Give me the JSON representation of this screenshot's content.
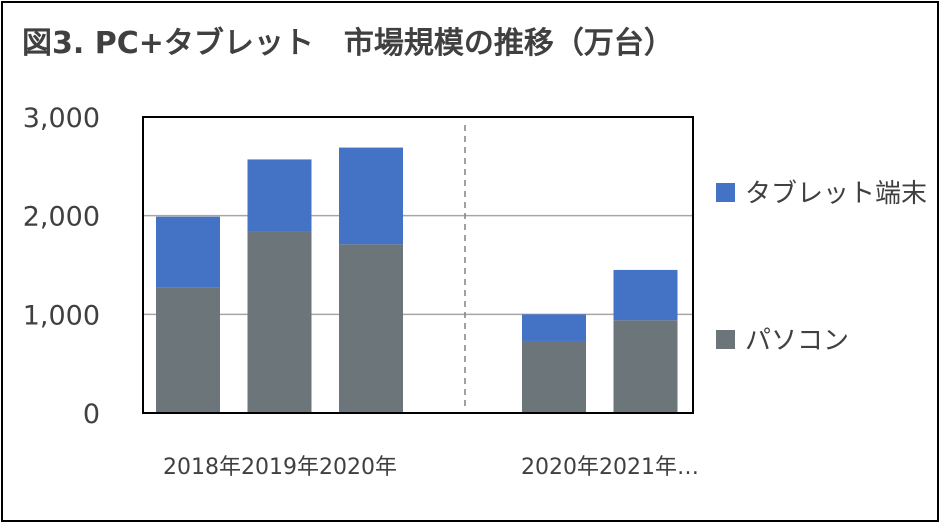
{
  "chart_data": {
    "type": "bar",
    "stacked": true,
    "title": "図3. PC+タブレット　市場規模の推移（万台）",
    "xlabel": "",
    "ylabel": "",
    "ylim": [
      0,
      3000
    ],
    "yticks": [
      "0",
      "1,000",
      "2,000",
      "3,000"
    ],
    "grid": true,
    "legend_position": "right",
    "categories": [
      "2018年",
      "2019年",
      "2020年",
      "",
      "2020年",
      "2021年…"
    ],
    "category_labels": [
      "2018年2019年2020年",
      "2020年2021年…"
    ],
    "series": [
      {
        "name": "パソコン",
        "color": "#6c757a",
        "values": [
          1270,
          1840,
          1710,
          null,
          730,
          940
        ]
      },
      {
        "name": "タブレット端末",
        "color": "#4472c4",
        "values": [
          720,
          730,
          980,
          null,
          270,
          510
        ]
      }
    ],
    "legend_order": [
      "タブレット端末",
      "パソコン"
    ]
  }
}
